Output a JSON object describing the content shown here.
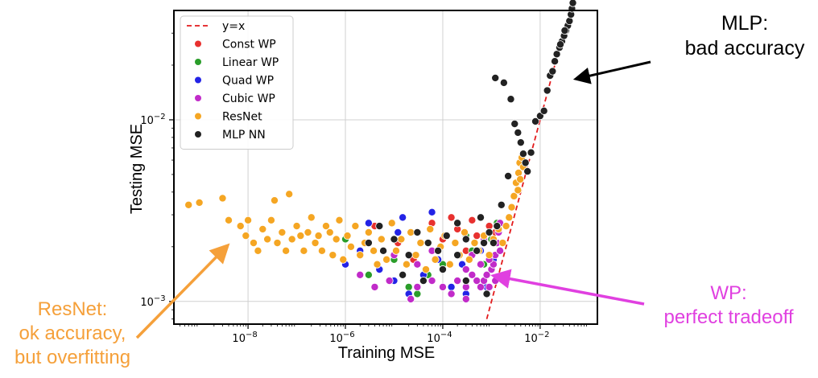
{
  "chart_data": {
    "type": "scatter",
    "xlabel": "Training  MSE",
    "ylabel": "Testing  MSE",
    "xscale": "log",
    "yscale": "log",
    "xlim": [
      3e-10,
      0.15
    ],
    "ylim": [
      0.00075,
      0.04
    ],
    "grid": true,
    "legend_position": "top-left",
    "x_ticks": [
      {
        "value": 1e-08,
        "base": "10",
        "exp": "−8"
      },
      {
        "value": 1e-06,
        "base": "10",
        "exp": "−6"
      },
      {
        "value": 0.0001,
        "base": "10",
        "exp": "−4"
      },
      {
        "value": 0.01,
        "base": "10",
        "exp": "−2"
      }
    ],
    "y_ticks": [
      {
        "value": 0.001,
        "base": "10",
        "exp": "−3"
      },
      {
        "value": 0.01,
        "base": "10",
        "exp": "−2"
      }
    ],
    "reference_line": {
      "name": "y=x",
      "color": "#e31a1c",
      "x": [
        0.0008,
        0.048
      ],
      "y": [
        0.0008,
        0.048
      ]
    },
    "series": [
      {
        "name": "Const WP",
        "color": "#e8312f",
        "points": [
          [
            1.2e-05,
            0.0021
          ],
          [
            3e-05,
            0.0024
          ],
          [
            6e-05,
            0.0027
          ],
          [
            0.0001,
            0.0022
          ],
          [
            0.0002,
            0.0025
          ],
          [
            0.0003,
            0.0019
          ],
          [
            0.0005,
            0.0023
          ],
          [
            0.0007,
            0.0021
          ],
          [
            0.0009,
            0.0026
          ],
          [
            4e-06,
            0.0026
          ],
          [
            0.00015,
            0.0029
          ],
          [
            0.0004,
            0.0028
          ],
          [
            0.0012,
            0.0024
          ],
          [
            2.5e-05,
            0.0017
          ]
        ]
      },
      {
        "name": "Linear WP",
        "color": "#2a9d2a",
        "points": [
          [
            1e-06,
            0.0022
          ],
          [
            3e-06,
            0.0014
          ],
          [
            1e-05,
            0.0017
          ],
          [
            2e-05,
            0.0012
          ],
          [
            5e-05,
            0.0014
          ],
          [
            0.0001,
            0.0016
          ],
          [
            0.0002,
            0.0013
          ],
          [
            0.0004,
            0.0019
          ],
          [
            0.0007,
            0.0016
          ],
          [
            0.001,
            0.0022
          ],
          [
            0.0013,
            0.0027
          ],
          [
            6e-06,
            0.0019
          ],
          [
            3e-05,
            0.0011
          ],
          [
            0.0003,
            0.0023
          ]
        ]
      },
      {
        "name": "Quad WP",
        "color": "#2323e6",
        "points": [
          [
            1e-06,
            0.0016
          ],
          [
            2e-06,
            0.0019
          ],
          [
            5e-06,
            0.0015
          ],
          [
            1e-05,
            0.0013
          ],
          [
            2e-05,
            0.0011
          ],
          [
            4e-05,
            0.0014
          ],
          [
            8e-05,
            0.0017
          ],
          [
            0.00015,
            0.0012
          ],
          [
            0.0003,
            0.0011
          ],
          [
            0.0005,
            0.0013
          ],
          [
            0.0008,
            0.0012
          ],
          [
            0.0011,
            0.0017
          ],
          [
            3e-06,
            0.0027
          ],
          [
            1.5e-05,
            0.0029
          ],
          [
            6e-05,
            0.0031
          ],
          [
            0.00025,
            0.0016
          ],
          [
            0.0006,
            0.0019
          ],
          [
            1.2e-05,
            0.0024
          ]
        ]
      },
      {
        "name": "Cubic WP",
        "color": "#c12bc9",
        "points": [
          [
            4e-06,
            0.0012
          ],
          [
            8e-06,
            0.0013
          ],
          [
            1.5e-05,
            0.0014
          ],
          [
            3e-05,
            0.0012
          ],
          [
            6e-05,
            0.0013
          ],
          [
            0.0001,
            0.0012
          ],
          [
            0.00015,
            0.0011
          ],
          [
            0.0002,
            0.0013
          ],
          [
            0.0003,
            0.0012
          ],
          [
            0.0004,
            0.0014
          ],
          [
            0.0005,
            0.0013
          ],
          [
            0.0006,
            0.0012
          ],
          [
            0.0007,
            0.0013
          ],
          [
            0.0008,
            0.0014
          ],
          [
            0.0009,
            0.0012
          ],
          [
            0.001,
            0.0015
          ],
          [
            0.0011,
            0.0016
          ],
          [
            0.0012,
            0.0018
          ],
          [
            0.0013,
            0.0021
          ],
          [
            0.0014,
            0.0024
          ],
          [
            0.0015,
            0.0027
          ],
          [
            0.0006,
            0.0016
          ],
          [
            0.0003,
            0.0015
          ],
          [
            0.0001,
            0.0015
          ],
          [
            3e-05,
            0.0016
          ],
          [
            1e-05,
            0.0018
          ],
          [
            2.2e-05,
            0.00103
          ],
          [
            0.0003,
            0.00103
          ],
          [
            0.0008,
            0.0011
          ],
          [
            0.0009,
            0.0017
          ],
          [
            0.0012,
            0.0013
          ],
          [
            0.0004,
            0.0018
          ],
          [
            6e-05,
            0.0019
          ],
          [
            2e-06,
            0.0014
          ],
          [
            0.0007,
            0.0022
          ],
          [
            0.0015,
            0.0019
          ]
        ]
      },
      {
        "name": "ResNet",
        "color": "#f5a623",
        "points": [
          [
            6e-10,
            0.0034
          ],
          [
            1e-09,
            0.0035
          ],
          [
            3e-09,
            0.0037
          ],
          [
            4e-09,
            0.0028
          ],
          [
            7e-09,
            0.0026
          ],
          [
            9e-09,
            0.0023
          ],
          [
            1e-08,
            0.0028
          ],
          [
            1.3e-08,
            0.0021
          ],
          [
            1.6e-08,
            0.0019
          ],
          [
            2e-08,
            0.0025
          ],
          [
            2.5e-08,
            0.0022
          ],
          [
            3e-08,
            0.0028
          ],
          [
            3.5e-08,
            0.0036
          ],
          [
            4e-08,
            0.0021
          ],
          [
            5e-08,
            0.0024
          ],
          [
            6e-08,
            0.0019
          ],
          [
            7e-08,
            0.0039
          ],
          [
            8e-08,
            0.0022
          ],
          [
            1e-07,
            0.0026
          ],
          [
            1.2e-07,
            0.0023
          ],
          [
            1.4e-07,
            0.0019
          ],
          [
            1.7e-07,
            0.0024
          ],
          [
            2e-07,
            0.0029
          ],
          [
            2.4e-07,
            0.0021
          ],
          [
            2.8e-07,
            0.0023
          ],
          [
            3.3e-07,
            0.0019
          ],
          [
            4e-07,
            0.0026
          ],
          [
            4.8e-07,
            0.0024
          ],
          [
            5.5e-07,
            0.0018
          ],
          [
            6.5e-07,
            0.0022
          ],
          [
            7.5e-07,
            0.0028
          ],
          [
            9e-07,
            0.0017
          ],
          [
            1.1e-06,
            0.0023
          ],
          [
            1.3e-06,
            0.002
          ],
          [
            1.6e-06,
            0.0026
          ],
          [
            2e-06,
            0.0018
          ],
          [
            2.5e-06,
            0.0021
          ],
          [
            3e-06,
            0.0024
          ],
          [
            3.8e-06,
            0.0019
          ],
          [
            4.5e-06,
            0.0016
          ],
          [
            5.5e-06,
            0.0022
          ],
          [
            7e-06,
            0.0017
          ],
          [
            9e-06,
            0.0027
          ],
          [
            1.1e-05,
            0.0019
          ],
          [
            1.4e-05,
            0.0022
          ],
          [
            1.8e-05,
            0.0016
          ],
          [
            2.2e-05,
            0.0024
          ],
          [
            2.8e-05,
            0.0018
          ],
          [
            3.5e-05,
            0.0021
          ],
          [
            4.5e-05,
            0.0015
          ],
          [
            5.5e-05,
            0.0025
          ],
          [
            7e-05,
            0.0017
          ],
          [
            9e-05,
            0.002
          ],
          [
            0.00011,
            0.0023
          ],
          [
            0.00014,
            0.0016
          ],
          [
            0.00018,
            0.0021
          ],
          [
            0.00022,
            0.0018
          ],
          [
            0.00028,
            0.0024
          ],
          [
            0.00035,
            0.0017
          ],
          [
            0.00045,
            0.0021
          ],
          [
            0.00055,
            0.0019
          ],
          [
            0.0007,
            0.0023
          ],
          [
            0.0009,
            0.0018
          ],
          [
            0.0011,
            0.0022
          ],
          [
            0.0014,
            0.0025
          ],
          [
            0.0017,
            0.0021
          ],
          [
            0.002,
            0.0026
          ],
          [
            0.0023,
            0.0029
          ],
          [
            0.0026,
            0.0033
          ],
          [
            0.0029,
            0.0038
          ],
          [
            0.0032,
            0.0045
          ],
          [
            0.0036,
            0.0051
          ],
          [
            0.0038,
            0.0058
          ],
          [
            0.0042,
            0.0062
          ],
          [
            0.0045,
            0.0055
          ],
          [
            0.0039,
            0.0047
          ],
          [
            0.0035,
            0.0041
          ]
        ]
      },
      {
        "name": "MLP NN",
        "color": "#222222",
        "points": [
          [
            3e-06,
            0.0021
          ],
          [
            6e-06,
            0.0019
          ],
          [
            1e-05,
            0.0022
          ],
          [
            2e-05,
            0.0018
          ],
          [
            3e-05,
            0.0024
          ],
          [
            5e-05,
            0.0021
          ],
          [
            8e-05,
            0.0019
          ],
          [
            0.00012,
            0.0023
          ],
          [
            0.0002,
            0.0018
          ],
          [
            0.0003,
            0.0022
          ],
          [
            0.0005,
            0.0019
          ],
          [
            0.0007,
            0.0021
          ],
          [
            0.0009,
            0.0024
          ],
          [
            0.0011,
            0.0021
          ],
          [
            0.0013,
            0.0026
          ],
          [
            1.5e-05,
            0.0014
          ],
          [
            4e-05,
            0.0013
          ],
          [
            0.0001,
            0.0015
          ],
          [
            0.0003,
            0.0013
          ],
          [
            0.0008,
            0.0011
          ],
          [
            0.0012,
            0.017
          ],
          [
            0.0018,
            0.016
          ],
          [
            0.0025,
            0.013
          ],
          [
            0.003,
            0.0095
          ],
          [
            0.0035,
            0.0085
          ],
          [
            0.004,
            0.0075
          ],
          [
            0.0045,
            0.0065
          ],
          [
            0.005,
            0.0058
          ],
          [
            0.0055,
            0.0052
          ],
          [
            0.0065,
            0.0066
          ],
          [
            0.008,
            0.0098
          ],
          [
            0.01,
            0.0105
          ],
          [
            0.012,
            0.0112
          ],
          [
            0.014,
            0.0145
          ],
          [
            0.016,
            0.0175
          ],
          [
            0.018,
            0.0185
          ],
          [
            0.02,
            0.021
          ],
          [
            0.022,
            0.023
          ],
          [
            0.025,
            0.025
          ],
          [
            0.028,
            0.027
          ],
          [
            0.031,
            0.029
          ],
          [
            0.034,
            0.031
          ],
          [
            0.037,
            0.033
          ],
          [
            0.04,
            0.035
          ],
          [
            0.043,
            0.038
          ],
          [
            0.045,
            0.041
          ],
          [
            0.047,
            0.044
          ],
          [
            0.032,
            0.031
          ],
          [
            0.026,
            0.026
          ],
          [
            0.0022,
            0.0049
          ],
          [
            0.0006,
            0.0029
          ],
          [
            0.0016,
            0.0034
          ],
          [
            0.0002,
            0.0027
          ],
          [
            5e-06,
            0.0026
          ]
        ]
      }
    ]
  },
  "annotations": {
    "mlp": {
      "lines": [
        "MLP:",
        "bad accuracy"
      ],
      "color": "#000000"
    },
    "wp": {
      "lines": [
        "WP:",
        "perfect tradeoff"
      ],
      "color": "#e040e0"
    },
    "resnet": {
      "lines": [
        "ResNet:",
        "ok accuracy,",
        "but overfitting"
      ],
      "color": "#f5a03a"
    }
  }
}
